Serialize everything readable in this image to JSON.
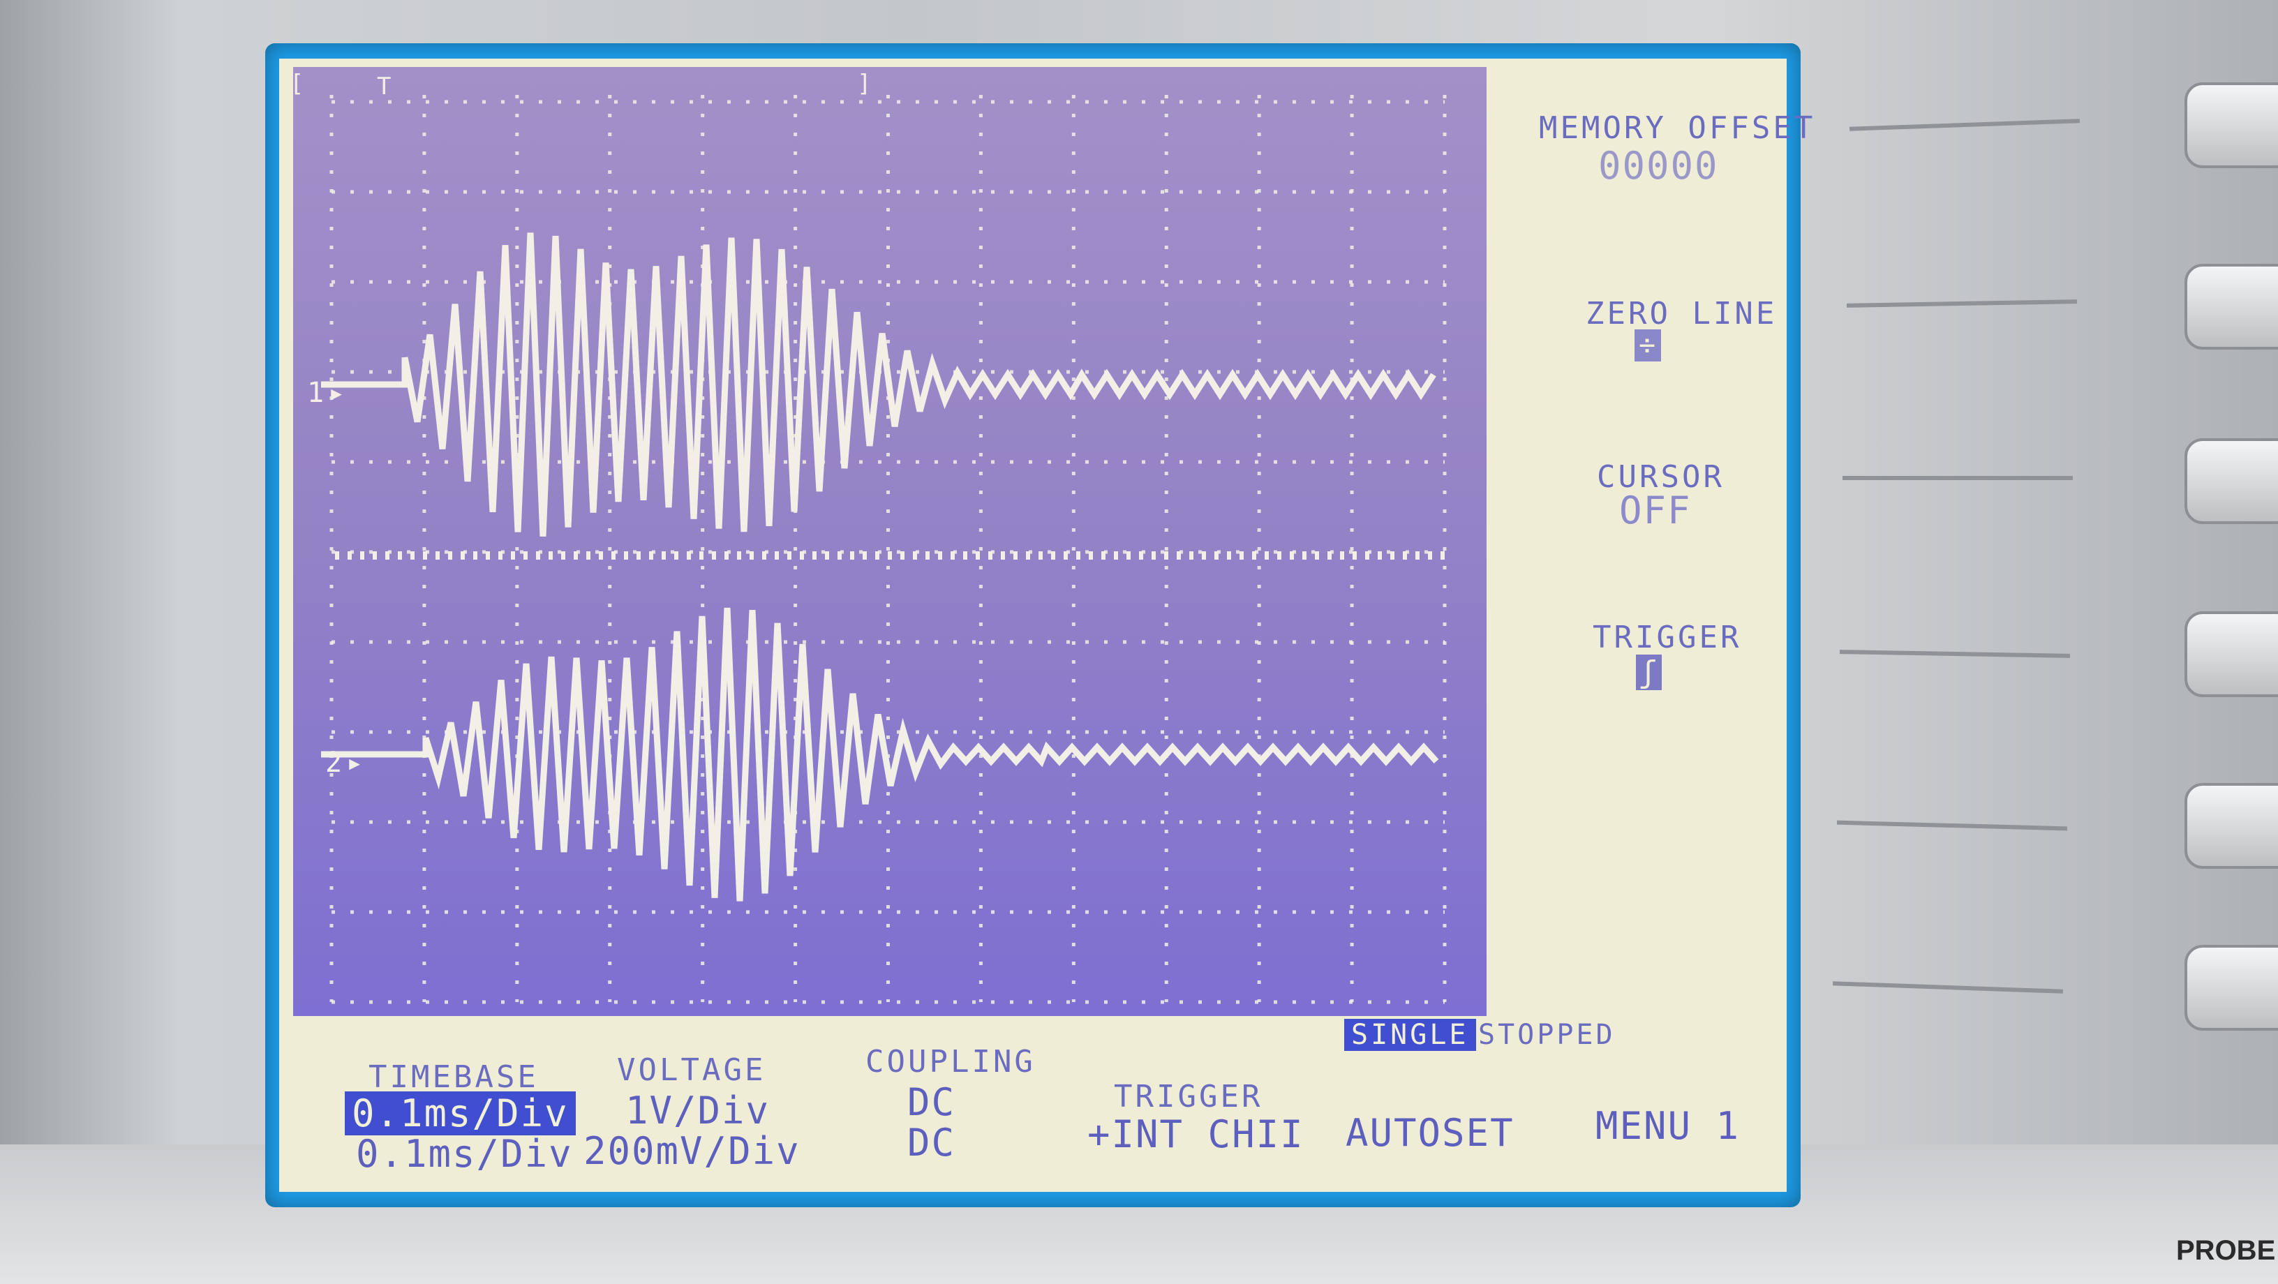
{
  "window": {
    "trace_top_label": "T"
  },
  "channels": [
    {
      "marker": "1"
    },
    {
      "marker": "2"
    }
  ],
  "side_menu": {
    "memory_offset_label": "MEMORY OFFSET",
    "memory_offset_value": "00000",
    "zero_line_label": "ZERO LINE",
    "zero_line_icon": "zero-line-icon",
    "cursor_label": "CURSOR",
    "cursor_value": "OFF",
    "trigger_label": "TRIGGER",
    "trigger_icon": "rising-edge-icon"
  },
  "status": {
    "mode": "SINGLE",
    "state": "STOPPED"
  },
  "bottom_menu": {
    "timebase_label": "TIMEBASE",
    "timebase_ch1": "0.1ms/Div",
    "timebase_ch2": "0.1ms/Div",
    "voltage_label": "VOLTAGE",
    "voltage_ch1": "1V/Div",
    "voltage_ch2": "200mV/Div",
    "coupling_label": "COUPLING",
    "coupling_ch1": "DC",
    "coupling_ch2": "DC",
    "trigger_label": "TRIGGER",
    "trigger_source": "+INT CHII",
    "autoset_label": "AUTOSET",
    "menu_label": "MENU 1"
  },
  "device": {
    "probe_label": "PROBE"
  },
  "colors": {
    "lcd_background": "#f0edd6",
    "plot_background": "#9386c8",
    "trace": "#f2f0e6",
    "text": "#5c5fbd",
    "highlight": "#3f4fd0",
    "screen_frame": "#1e9be6"
  }
}
